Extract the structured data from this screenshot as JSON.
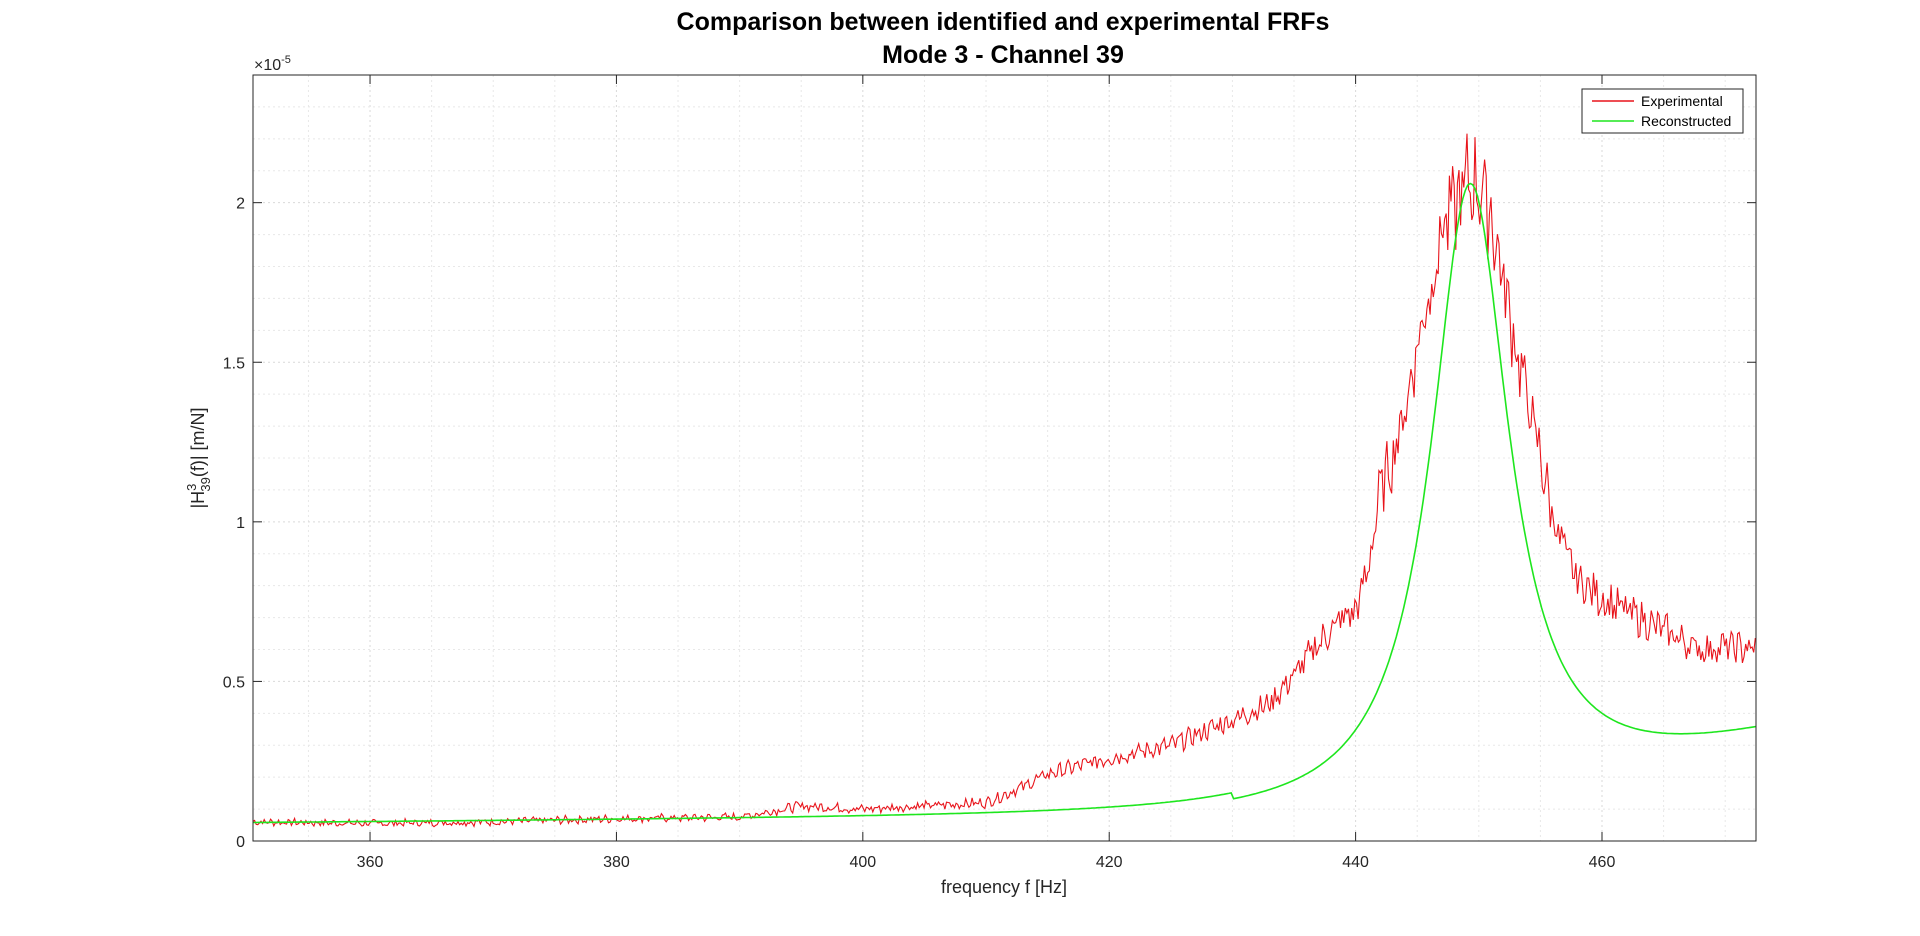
{
  "window": {
    "background": "#ffffff"
  },
  "chart_data": {
    "type": "line",
    "title": "Comparison between identified and experimental FRFs",
    "subtitle": "Mode 3 - Channel 39",
    "xlabel": "frequency f [Hz]",
    "ylabel": {
      "main": "|H",
      "sup": "3",
      "sub": "39",
      "rest": "(f)|   [m/N]"
    },
    "exponent_label": {
      "times": "×",
      "base": "10",
      "exp": "-5"
    },
    "xlim": [
      350.5,
      472.5
    ],
    "ylim": [
      0,
      2.4
    ],
    "x_ticks": [
      360,
      380,
      400,
      420,
      440,
      460
    ],
    "x_tick_labels": [
      "360",
      "380",
      "400",
      "420",
      "440",
      "460"
    ],
    "y_ticks": [
      0,
      0.5,
      1,
      1.5,
      2
    ],
    "y_tick_labels": [
      "0",
      "0.5",
      "1",
      "1.5",
      "2"
    ],
    "grid": true,
    "minor_grid": true,
    "legend_position": "top-right",
    "series": [
      {
        "name": "Experimental",
        "color": "#e8141b",
        "style": "noisy",
        "x": [
          350.5,
          360,
          370,
          380,
          390,
          395,
          400,
          405,
          410,
          413,
          415,
          420,
          425,
          430,
          433,
          435,
          437,
          439,
          440,
          441,
          442,
          443,
          444,
          445,
          446,
          447,
          448,
          449,
          450,
          451,
          452,
          453,
          454,
          455,
          456,
          457,
          458,
          460,
          462,
          464,
          466,
          468,
          470,
          472.5
        ],
        "y": [
          0.06,
          0.055,
          0.06,
          0.07,
          0.075,
          0.11,
          0.1,
          0.11,
          0.12,
          0.17,
          0.21,
          0.26,
          0.3,
          0.38,
          0.43,
          0.52,
          0.62,
          0.7,
          0.72,
          0.85,
          1.1,
          1.2,
          1.35,
          1.55,
          1.72,
          1.92,
          1.98,
          2.06,
          2.06,
          1.96,
          1.75,
          1.55,
          1.38,
          1.2,
          1.02,
          0.9,
          0.82,
          0.76,
          0.72,
          0.68,
          0.64,
          0.6,
          0.61,
          0.6
        ]
      },
      {
        "name": "Reconstructed",
        "color": "#1ee61e",
        "style": "smooth",
        "resonance": {
          "f0": 449.3,
          "peak": 2.06,
          "half_width": 3.85,
          "floor_start": 0.055,
          "floor_end": 0.6
        }
      }
    ]
  }
}
